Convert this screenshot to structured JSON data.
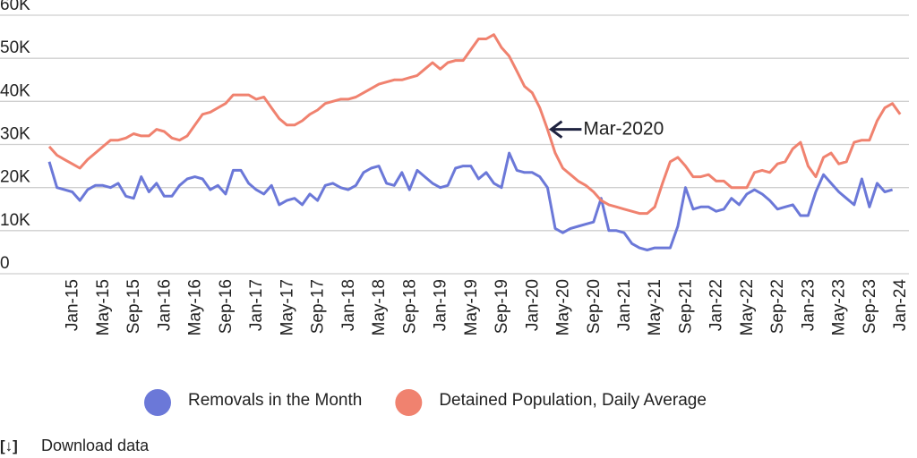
{
  "chart_data": {
    "type": "line",
    "categories": [
      null,
      null,
      null,
      "Jan-15",
      null,
      null,
      null,
      "May-15",
      null,
      null,
      null,
      "Sep-15",
      null,
      null,
      null,
      "Jan-16",
      null,
      null,
      null,
      "May-16",
      null,
      null,
      null,
      "Sep-16",
      null,
      null,
      null,
      "Jan-17",
      null,
      null,
      null,
      "May-17",
      null,
      null,
      null,
      "Sep-17",
      null,
      null,
      null,
      "Jan-18",
      null,
      null,
      null,
      "May-18",
      null,
      null,
      null,
      "Sep-18",
      null,
      null,
      null,
      "Jan-19",
      null,
      null,
      null,
      "May-19",
      null,
      null,
      null,
      "Sep-19",
      null,
      null,
      null,
      "Jan-20",
      null,
      null,
      null,
      "May-20",
      null,
      null,
      null,
      "Sep-20",
      null,
      null,
      null,
      "Jan-21",
      null,
      null,
      null,
      "May-21",
      null,
      null,
      null,
      "Sep-21",
      null,
      null,
      null,
      "Jan-22",
      null,
      null,
      null,
      "May-22",
      null,
      null,
      null,
      "Sep-22",
      null,
      null,
      null,
      "Jan-23",
      null,
      null,
      null,
      "May-23",
      null,
      null,
      null,
      "Sep-23",
      null,
      null,
      null,
      "Jan-24"
    ],
    "series": [
      {
        "name": "Removals in the Month",
        "color": "#6b78d8",
        "values": [
          26000,
          20000,
          19500,
          19000,
          17000,
          19500,
          20500,
          20500,
          20000,
          21000,
          18000,
          17500,
          22500,
          19000,
          21000,
          18000,
          18000,
          20500,
          22000,
          22500,
          22000,
          19500,
          20500,
          18500,
          24000,
          24000,
          21000,
          19500,
          18500,
          20500,
          16000,
          17000,
          17500,
          16000,
          18500,
          17000,
          20500,
          21000,
          20000,
          19500,
          20500,
          23500,
          24500,
          25000,
          21000,
          20500,
          23500,
          19500,
          24000,
          22500,
          21000,
          20000,
          20500,
          24500,
          25000,
          25000,
          22000,
          23500,
          21000,
          20000,
          28000,
          24000,
          23500,
          23500,
          22500,
          20000,
          10500,
          9500,
          10500,
          11000,
          11500,
          12000,
          17500,
          10000,
          10000,
          9500,
          7000,
          6000,
          5500,
          6000,
          6000,
          6000,
          11000,
          20000,
          15000,
          15500,
          15500,
          14500,
          15000,
          17500,
          16000,
          18500,
          19500,
          18500,
          17000,
          15000,
          15500,
          16000,
          13500,
          13500,
          19000,
          23000,
          21000,
          19000,
          17500,
          16000,
          22000,
          15500,
          21000,
          19000,
          19500,
          null
        ]
      },
      {
        "name": "Detained Population, Daily Average",
        "color": "#f0826f",
        "values": [
          29500,
          27500,
          26500,
          25500,
          24500,
          26500,
          28000,
          29500,
          31000,
          31000,
          31500,
          32500,
          32000,
          32000,
          33500,
          33000,
          31500,
          31000,
          32000,
          34500,
          37000,
          37500,
          38500,
          39500,
          41500,
          41500,
          41500,
          40500,
          41000,
          38500,
          36000,
          34500,
          34500,
          35500,
          37000,
          38000,
          39500,
          40000,
          40500,
          40500,
          41000,
          42000,
          43000,
          44000,
          44500,
          45000,
          45000,
          45500,
          46000,
          47500,
          49000,
          47500,
          49000,
          49500,
          49500,
          52000,
          54500,
          54500,
          55500,
          52500,
          50500,
          47000,
          43500,
          42000,
          38500,
          33500,
          28000,
          24500,
          23000,
          21500,
          20500,
          19000,
          17000,
          16000,
          15500,
          15000,
          14500,
          14000,
          14000,
          15500,
          21000,
          26000,
          27000,
          25000,
          22500,
          22500,
          23000,
          21500,
          21500,
          20000,
          20000,
          20000,
          23500,
          24000,
          23500,
          25500,
          26000,
          29000,
          30500,
          25000,
          22500,
          27000,
          28000,
          25500,
          26000,
          30500,
          31000,
          31000,
          35500,
          38500,
          39500,
          37000
        ]
      }
    ],
    "ylim": [
      0,
      60000
    ],
    "yticks": [
      0,
      {
        "value": 10000,
        "label": "10K"
      },
      {
        "value": 20000,
        "label": "20K"
      },
      {
        "value": 30000,
        "label": "30K"
      },
      {
        "value": 40000,
        "label": "40K"
      },
      {
        "value": 50000,
        "label": "50K"
      },
      {
        "value": 60000,
        "label": "60K"
      }
    ],
    "grid": true,
    "annotation": "Mar-2020",
    "download_label": "Download data"
  }
}
